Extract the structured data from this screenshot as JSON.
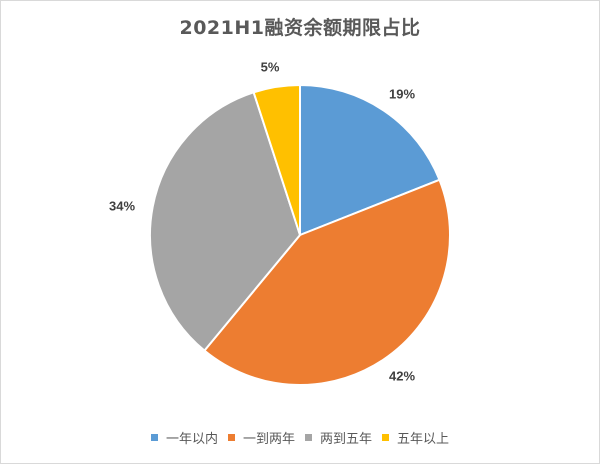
{
  "chart_data": {
    "type": "pie",
    "title": "2021H1融资余额期限占比",
    "categories": [
      "一年以内",
      "一到两年",
      "两到五年",
      "五年以上"
    ],
    "values": [
      19,
      42,
      34,
      5
    ],
    "labels": [
      "19%",
      "42%",
      "34%",
      "5%"
    ],
    "colors": [
      "#5b9bd5",
      "#ed7d31",
      "#a5a5a5",
      "#ffc000"
    ],
    "start_angle_deg": 0,
    "direction": "clockwise",
    "legend_position": "bottom",
    "data_labels": "outside_end"
  },
  "legend": {
    "items": [
      {
        "label": "一年以内",
        "color": "#5b9bd5"
      },
      {
        "label": "一到两年",
        "color": "#ed7d31"
      },
      {
        "label": "两到五年",
        "color": "#a5a5a5"
      },
      {
        "label": "五年以上",
        "color": "#ffc000"
      }
    ]
  }
}
